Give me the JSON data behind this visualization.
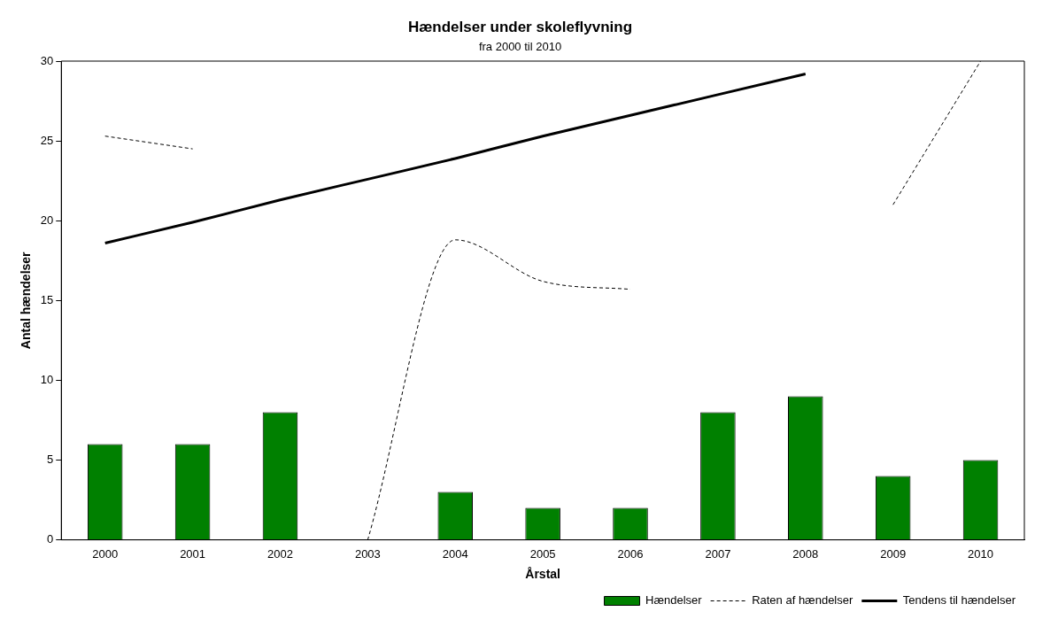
{
  "chart_data": {
    "type": "bar",
    "title": "Hændelser under skoleflyvning",
    "subtitle": "fra 2000 til 2010",
    "xlabel": "Årstal",
    "ylabel": "Antal hændelser",
    "categories": [
      "2000",
      "2001",
      "2002",
      "2003",
      "2004",
      "2005",
      "2006",
      "2007",
      "2008",
      "2009",
      "2010"
    ],
    "series": [
      {
        "name": "Hændelser",
        "color": "#008000",
        "values": [
          6,
          6,
          8,
          0,
          3,
          2,
          2,
          8,
          9,
          4,
          5
        ]
      },
      {
        "name": "Raten af hændelser",
        "type": "line",
        "line_style": "dashed",
        "color": "#000000",
        "values": [
          25.3,
          24.5,
          null,
          0,
          18.8,
          16.2,
          15.7,
          null,
          null,
          21,
          30
        ]
      },
      {
        "name": "Tendens til hændelser",
        "type": "line",
        "line_style": "solid",
        "color": "#000000",
        "values": [
          18.6,
          19.9,
          21.3,
          22.6,
          23.9,
          25.3,
          26.6,
          27.9,
          29.2,
          null,
          null
        ]
      }
    ],
    "ylim": [
      0,
      30
    ],
    "yticks": [
      0,
      5,
      10,
      15,
      20,
      25,
      30
    ],
    "grid": false,
    "legend": "bottom"
  }
}
